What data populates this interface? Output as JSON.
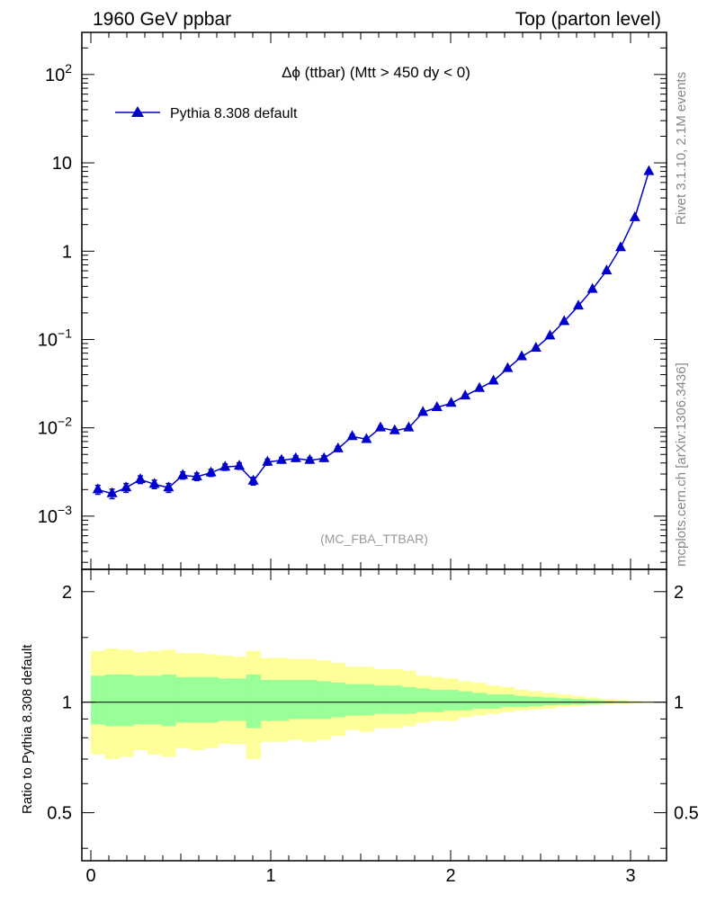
{
  "header": {
    "left": "1960 GeV ppbar",
    "right": "Top (parton level)"
  },
  "side_text": {
    "rivet": "Rivet 3.1.10,  2.1M events",
    "mcplots": "mcplots.cern.ch [arXiv:1306.3436]"
  },
  "colors": {
    "series": "#0000cc",
    "band_outer": "#ffff99",
    "band_inner": "#99ff99"
  },
  "chart_data": [
    {
      "type": "line",
      "title": "Δϕ (ttbar) (Mtt > 450 dy < 0)",
      "annotation": "(MC_FBA_TTBAR)",
      "yscale": "log",
      "xlim": [
        -0.05,
        3.2
      ],
      "ylim": [
        0.00025,
        300
      ],
      "ytick_labels": [
        "10^-3",
        "10^-2",
        "10^-1",
        "1",
        "10",
        "10^2"
      ],
      "legend_position": "top-left",
      "series": [
        {
          "name": "Pythia 8.308 default",
          "marker": "triangle",
          "x": [
            0.039,
            0.118,
            0.196,
            0.275,
            0.353,
            0.432,
            0.511,
            0.589,
            0.668,
            0.746,
            0.825,
            0.903,
            0.982,
            1.06,
            1.139,
            1.217,
            1.296,
            1.374,
            1.453,
            1.532,
            1.61,
            1.689,
            1.767,
            1.846,
            1.924,
            2.003,
            2.081,
            2.16,
            2.238,
            2.317,
            2.395,
            2.474,
            2.552,
            2.631,
            2.71,
            2.788,
            2.867,
            2.945,
            3.024,
            3.102
          ],
          "y": [
            0.002,
            0.0018,
            0.0021,
            0.0026,
            0.0023,
            0.0021,
            0.0029,
            0.0028,
            0.0031,
            0.0036,
            0.0037,
            0.0025,
            0.0041,
            0.0043,
            0.0045,
            0.0043,
            0.0045,
            0.0058,
            0.008,
            0.0074,
            0.01,
            0.0093,
            0.01,
            0.015,
            0.017,
            0.019,
            0.023,
            0.028,
            0.034,
            0.047,
            0.064,
            0.08,
            0.11,
            0.16,
            0.24,
            0.37,
            0.6,
            1.1,
            2.4,
            8.0
          ],
          "yerr": [
            0.00023,
            0.00022,
            0.00024,
            0.00026,
            0.00025,
            0.00024,
            0.00027,
            0.00027,
            0.00028,
            0.0003,
            0.00031,
            0.00025,
            0.00032,
            0.00032,
            0.00033,
            0.00032,
            0.00033,
            0.00037,
            0.00042,
            0.00041,
            0.00048,
            0.00046,
            0.00048,
            0.0006,
            0.0006,
            0.0007,
            0.0007,
            0.0008,
            0.0009,
            0.001,
            0.0012,
            0.0013,
            0.0015,
            0.0018,
            0.0022,
            0.0027,
            0.0035,
            0.0047,
            0.007,
            0.013
          ]
        }
      ]
    },
    {
      "type": "area",
      "ylabel": "Ratio to Pythia 8.308 default",
      "xlim": [
        -0.05,
        3.2
      ],
      "ylim": [
        0.37,
        2.3
      ],
      "yticks": [
        0.5,
        1,
        2
      ],
      "ytick_labels": [
        "0.5",
        "1",
        "2"
      ],
      "xticks": [
        0,
        1,
        2,
        3
      ],
      "xtick_labels": [
        "0",
        "1",
        "2",
        "3"
      ],
      "reference_line": 1,
      "bin_edges": [
        0.0,
        0.0785,
        0.157,
        0.2355,
        0.314,
        0.3925,
        0.471,
        0.5495,
        0.628,
        0.7065,
        0.785,
        0.8635,
        0.942,
        1.0205,
        1.099,
        1.1775,
        1.256,
        1.3345,
        1.413,
        1.4915,
        1.57,
        1.6485,
        1.727,
        1.8055,
        1.884,
        1.9625,
        2.041,
        2.1195,
        2.198,
        2.2765,
        2.355,
        2.4335,
        2.512,
        2.5905,
        2.669,
        2.7475,
        2.826,
        2.9045,
        2.983,
        3.0615,
        3.14
      ],
      "series": [
        {
          "role": "outer band",
          "lower": [
            0.72,
            0.7,
            0.71,
            0.74,
            0.72,
            0.71,
            0.75,
            0.74,
            0.75,
            0.77,
            0.77,
            0.7,
            0.78,
            0.78,
            0.79,
            0.78,
            0.79,
            0.81,
            0.84,
            0.83,
            0.85,
            0.85,
            0.86,
            0.88,
            0.89,
            0.89,
            0.91,
            0.92,
            0.93,
            0.94,
            0.95,
            0.955,
            0.96,
            0.97,
            0.975,
            0.98,
            0.985,
            0.99,
            0.993,
            0.996
          ],
          "upper": [
            1.38,
            1.4,
            1.39,
            1.37,
            1.38,
            1.39,
            1.36,
            1.36,
            1.35,
            1.34,
            1.33,
            1.38,
            1.32,
            1.32,
            1.31,
            1.31,
            1.3,
            1.28,
            1.25,
            1.25,
            1.23,
            1.23,
            1.22,
            1.18,
            1.17,
            1.16,
            1.14,
            1.13,
            1.11,
            1.1,
            1.08,
            1.07,
            1.06,
            1.05,
            1.04,
            1.03,
            1.02,
            1.015,
            1.008,
            1.004
          ]
        },
        {
          "role": "inner band",
          "lower": [
            0.87,
            0.86,
            0.86,
            0.87,
            0.87,
            0.86,
            0.88,
            0.88,
            0.88,
            0.89,
            0.89,
            0.85,
            0.89,
            0.89,
            0.9,
            0.9,
            0.9,
            0.91,
            0.92,
            0.92,
            0.93,
            0.93,
            0.93,
            0.94,
            0.94,
            0.95,
            0.95,
            0.96,
            0.96,
            0.97,
            0.97,
            0.975,
            0.98,
            0.983,
            0.987,
            0.99,
            0.993,
            0.995,
            0.997,
            0.999
          ],
          "upper": [
            1.18,
            1.19,
            1.19,
            1.18,
            1.18,
            1.19,
            1.17,
            1.17,
            1.17,
            1.16,
            1.16,
            1.19,
            1.15,
            1.15,
            1.15,
            1.15,
            1.14,
            1.13,
            1.12,
            1.12,
            1.11,
            1.11,
            1.1,
            1.09,
            1.08,
            1.08,
            1.07,
            1.06,
            1.05,
            1.05,
            1.04,
            1.035,
            1.03,
            1.025,
            1.02,
            1.015,
            1.01,
            1.007,
            1.004,
            1.002
          ]
        }
      ]
    }
  ]
}
